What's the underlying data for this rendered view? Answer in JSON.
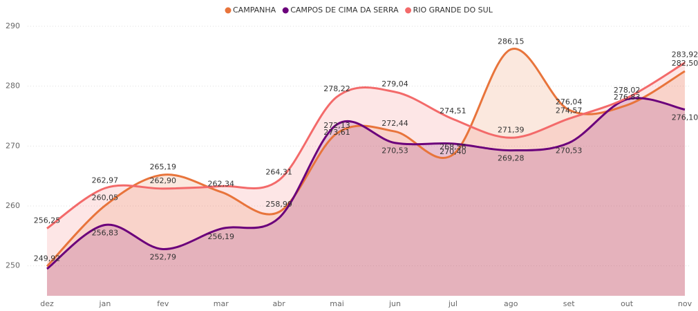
{
  "chart_data": {
    "type": "area",
    "categories": [
      "dez",
      "jan",
      "fev",
      "mar",
      "abr",
      "mai",
      "jun",
      "jul",
      "ago",
      "set",
      "out",
      "nov"
    ],
    "series": [
      {
        "name": "CAMPANHA",
        "color": "#E8743B",
        "values": [
          249.92,
          260.05,
          265.19,
          262.34,
          258.99,
          272.13,
          272.44,
          268.56,
          286.15,
          276.04,
          276.83,
          282.5
        ],
        "value_labels": [
          "249,92",
          "260,05",
          "265,19",
          "262,34",
          "258,99",
          "272,13",
          "272,44",
          "268,56",
          "286,15",
          "276,04",
          "276,83",
          "282,50"
        ]
      },
      {
        "name": "CAMPOS DE CIMA DA SERRA",
        "color": "#6B007B",
        "values": [
          249.5,
          256.83,
          252.79,
          256.19,
          258.0,
          273.61,
          270.53,
          270.4,
          269.28,
          270.53,
          277.8,
          276.1
        ],
        "value_labels": [
          null,
          "256,83",
          "252,79",
          "256,19",
          null,
          "273,61",
          "270,53",
          "270,40",
          "269,28",
          "270,53",
          null,
          "276,10"
        ]
      },
      {
        "name": "RIO GRANDE DO SUL",
        "color": "#F36A6A",
        "values": [
          256.25,
          262.97,
          262.9,
          263.3,
          264.31,
          278.22,
          279.04,
          274.51,
          271.39,
          274.57,
          278.02,
          283.92
        ],
        "value_labels": [
          "256,25",
          "262,97",
          "262,90",
          null,
          "264,31",
          "278,22",
          "279,04",
          "274,51",
          "271,39",
          "274,57",
          "278,02",
          "283,92"
        ]
      }
    ],
    "ylim": [
      245,
      290
    ],
    "yticks": [
      250,
      260,
      270,
      280,
      290
    ],
    "grid": true,
    "legend": "top"
  }
}
